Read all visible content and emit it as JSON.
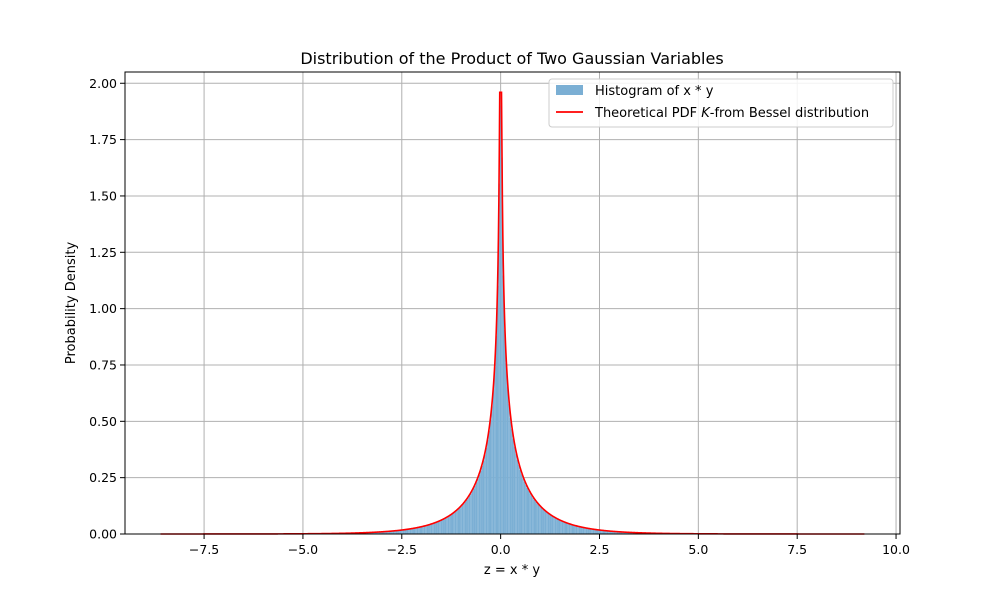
{
  "chart_data": {
    "type": "bar",
    "title": "Distribution of the Product of Two Gaussian Variables",
    "xlabel": "z = x * y",
    "ylabel": "Probability Density",
    "xlim": [
      -9.5,
      10.1
    ],
    "ylim": [
      0,
      2.05
    ],
    "xticks": [
      -7.5,
      -5.0,
      -2.5,
      0.0,
      2.5,
      5.0,
      7.5,
      10.0
    ],
    "xtick_labels": [
      "−7.5",
      "−5.0",
      "−2.5",
      "0.0",
      "2.5",
      "5.0",
      "7.5",
      "10.0"
    ],
    "yticks": [
      0,
      0.25,
      0.5,
      0.75,
      1.0,
      1.25,
      1.5,
      1.75,
      2.0
    ],
    "ytick_labels": [
      "0.00",
      "0.25",
      "0.50",
      "0.75",
      "1.00",
      "1.25",
      "1.50",
      "1.75",
      "2.00"
    ],
    "grid": true,
    "legend_position": "top-right",
    "histogram": {
      "name": "Histogram of x * y",
      "color": "#7bafd4",
      "range": [
        -8.6,
        9.2
      ],
      "bin_width": 0.0356
    },
    "pdf_curve": {
      "name_prefix": "Theoretical PDF ",
      "name_italic": "K",
      "name_suffix": "-from Bessel distribution",
      "color": "#ff0000",
      "range": [
        -8.6,
        9.2
      ],
      "peak": 1.96
    }
  }
}
